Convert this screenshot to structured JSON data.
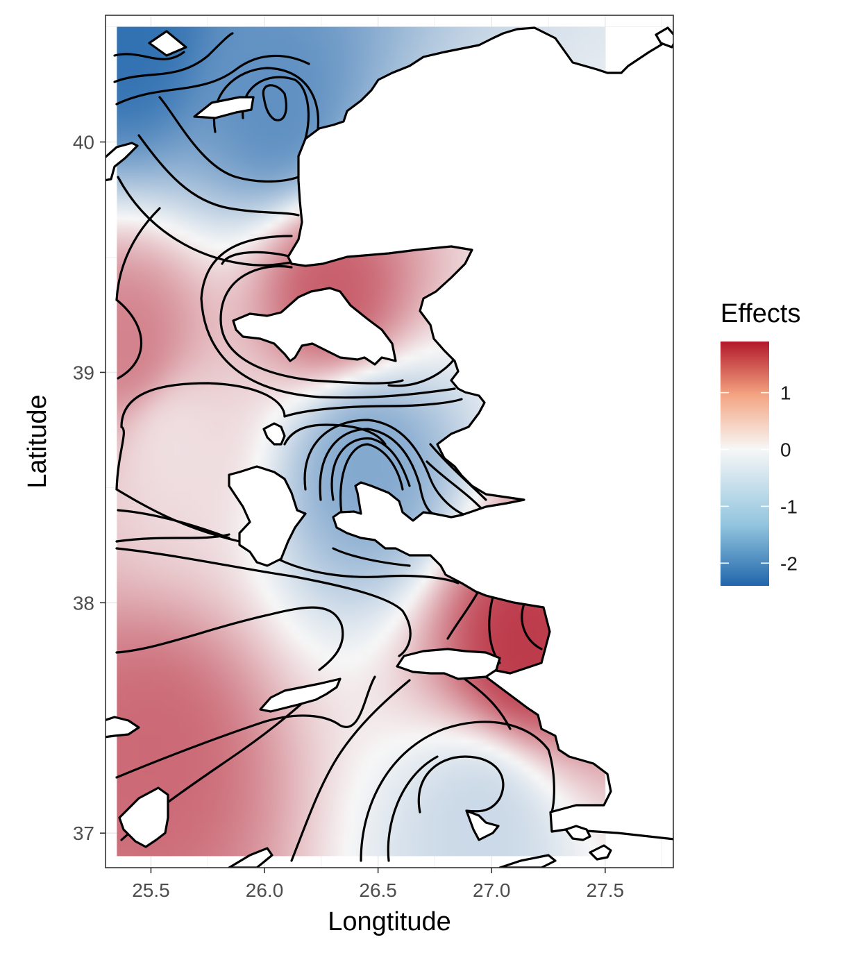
{
  "chart_data": {
    "type": "heatmap",
    "title": "",
    "xlabel": "Longtitude",
    "ylabel": "Latitude",
    "xlim": [
      25.3,
      27.8
    ],
    "ylim": [
      36.85,
      40.55
    ],
    "x_ticks": [
      25.5,
      26.0,
      26.5,
      27.0,
      27.5
    ],
    "x_tick_labels": [
      "25.5",
      "26.0",
      "26.5",
      "27.0",
      "27.5"
    ],
    "y_ticks": [
      37,
      38,
      39,
      40
    ],
    "y_tick_labels": [
      "37",
      "38",
      "39",
      "40"
    ],
    "grid": true,
    "overlay": "contour lines of the effect surface; land areas drawn as white polygons with black outline",
    "legend": {
      "title": "Effects",
      "position": "right",
      "range": [
        -2.4,
        1.9
      ],
      "breaks": [
        1,
        0,
        -1,
        -2
      ],
      "break_labels": [
        "1",
        "0",
        "-1",
        "-2"
      ],
      "colors": {
        "low": "#2166ac",
        "mid": "#f7f7f7",
        "high": "#b2182b"
      }
    },
    "effect_centers": [
      {
        "lon": 25.4,
        "lat": 40.45,
        "effect": -2.2
      },
      {
        "lon": 26.05,
        "lat": 40.15,
        "effect": -1.7
      },
      {
        "lon": 26.45,
        "lat": 38.6,
        "effect": -1.3
      },
      {
        "lon": 26.95,
        "lat": 37.05,
        "effect": -0.5
      },
      {
        "lon": 26.3,
        "lat": 39.35,
        "effect": 1.3
      },
      {
        "lon": 27.15,
        "lat": 37.8,
        "effect": 1.6
      },
      {
        "lon": 25.5,
        "lat": 37.35,
        "effect": 1.2
      },
      {
        "lon": 25.4,
        "lat": 39.1,
        "effect": 1.0
      },
      {
        "lon": 25.6,
        "lat": 38.7,
        "effect": 0.2
      }
    ]
  }
}
